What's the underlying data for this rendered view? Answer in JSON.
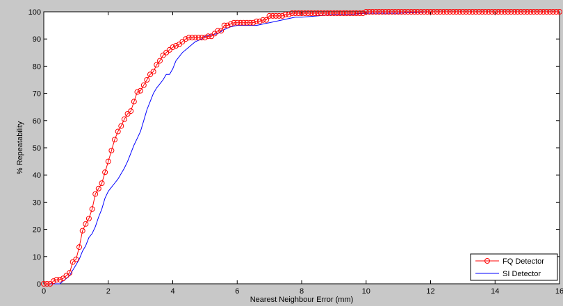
{
  "figure": {
    "background": "#c8c8c8",
    "plot_background": "#ffffff"
  },
  "chart_data": {
    "type": "line",
    "title": "",
    "xlabel": "Nearest Neighbour Error (mm)",
    "ylabel": "% Repeatability",
    "xlim": [
      0,
      16
    ],
    "ylim": [
      0,
      100
    ],
    "xticks": [
      0,
      2,
      4,
      6,
      8,
      10,
      12,
      14,
      16
    ],
    "yticks": [
      0,
      10,
      20,
      30,
      40,
      50,
      60,
      70,
      80,
      90,
      100
    ],
    "grid": false,
    "legend_position": "bottom-right",
    "series": [
      {
        "name": "FQ Detector",
        "color": "#ff0000",
        "marker": "circle",
        "x": [
          0.0,
          0.1,
          0.2,
          0.3,
          0.4,
          0.5,
          0.6,
          0.7,
          0.8,
          0.9,
          1.0,
          1.1,
          1.2,
          1.3,
          1.4,
          1.5,
          1.6,
          1.7,
          1.8,
          1.9,
          2.0,
          2.1,
          2.2,
          2.3,
          2.4,
          2.5,
          2.6,
          2.7,
          2.8,
          2.9,
          3.0,
          3.1,
          3.2,
          3.3,
          3.4,
          3.5,
          3.6,
          3.7,
          3.8,
          3.9,
          4.0,
          4.1,
          4.2,
          4.3,
          4.4,
          4.5,
          4.6,
          4.7,
          4.8,
          4.9,
          5.0,
          5.1,
          5.2,
          5.3,
          5.4,
          5.5,
          5.6,
          5.7,
          5.8,
          5.9,
          6.0,
          6.1,
          6.2,
          6.3,
          6.4,
          6.5,
          6.6,
          6.7,
          6.8,
          6.9,
          7.0,
          7.1,
          7.2,
          7.3,
          7.4,
          7.5,
          7.6,
          7.7,
          7.8,
          7.9,
          8.0,
          8.1,
          8.2,
          8.3,
          8.4,
          8.5,
          8.6,
          8.7,
          8.8,
          8.9,
          9.0,
          9.1,
          9.2,
          9.3,
          9.4,
          9.5,
          9.6,
          9.7,
          9.8,
          9.9,
          10.0,
          10.1,
          10.2,
          10.3,
          10.4,
          10.5,
          10.6,
          10.7,
          10.8,
          10.9,
          11.0,
          11.1,
          11.2,
          11.3,
          11.4,
          11.5,
          11.6,
          11.7,
          11.8,
          11.9,
          12.0,
          12.1,
          12.2,
          12.3,
          12.4,
          12.5,
          12.6,
          12.7,
          12.8,
          12.9,
          13.0,
          13.1,
          13.2,
          13.3,
          13.4,
          13.5,
          13.6,
          13.7,
          13.8,
          13.9,
          14.0,
          14.1,
          14.2,
          14.3,
          14.4,
          14.5,
          14.6,
          14.7,
          14.8,
          14.9,
          15.0,
          15.1,
          15.2,
          15.3,
          15.4,
          15.5,
          15.6,
          15.7,
          15.8,
          15.9,
          16.0
        ],
        "y": [
          0,
          0,
          0,
          1,
          1.5,
          1.5,
          2,
          3,
          4,
          8,
          9,
          13.5,
          19.5,
          22,
          24,
          27.5,
          33,
          35,
          37,
          41,
          45,
          49,
          53,
          56,
          58,
          60.5,
          62.5,
          63.5,
          67,
          70.5,
          71,
          73,
          75,
          77,
          78,
          80.5,
          82,
          84,
          85,
          86,
          87,
          87.5,
          88,
          89,
          90,
          90.5,
          90.5,
          90.5,
          90.5,
          90.5,
          90.5,
          91,
          91,
          92,
          93,
          93,
          95,
          95,
          95.5,
          96,
          96,
          96,
          96,
          96,
          96,
          96,
          96.5,
          96.5,
          97,
          97,
          98.5,
          98.5,
          98.5,
          98.5,
          98.5,
          99,
          99,
          99.5,
          99.5,
          99.5,
          99.5,
          99.5,
          99.5,
          99.5,
          99.5,
          99.5,
          99.5,
          99.5,
          99.5,
          99.5,
          99.5,
          99.5,
          99.5,
          99.5,
          99.5,
          99.5,
          99.5,
          99.5,
          99.5,
          99.5,
          100,
          100,
          100,
          100,
          100,
          100,
          100,
          100,
          100,
          100,
          100,
          100,
          100,
          100,
          100,
          100,
          100,
          100,
          100,
          100,
          100,
          100,
          100,
          100,
          100,
          100,
          100,
          100,
          100,
          100,
          100,
          100,
          100,
          100,
          100,
          100,
          100,
          100,
          100,
          100,
          100,
          100,
          100,
          100,
          100,
          100,
          100,
          100,
          100,
          100,
          100,
          100,
          100,
          100,
          100,
          100,
          100,
          100,
          100,
          100,
          100
        ]
      },
      {
        "name": "SI Detector",
        "color": "#0000ff",
        "marker": "none",
        "x": [
          0.0,
          0.2,
          0.4,
          0.5,
          0.6,
          0.7,
          0.8,
          0.9,
          1.0,
          1.1,
          1.2,
          1.3,
          1.4,
          1.5,
          1.6,
          1.7,
          1.8,
          1.9,
          2.0,
          2.1,
          2.2,
          2.3,
          2.4,
          2.5,
          2.6,
          2.7,
          2.8,
          2.9,
          3.0,
          3.1,
          3.2,
          3.3,
          3.4,
          3.5,
          3.6,
          3.7,
          3.8,
          3.9,
          4.0,
          4.1,
          4.2,
          4.3,
          4.4,
          4.5,
          4.6,
          4.7,
          4.8,
          4.9,
          5.0,
          5.2,
          5.4,
          5.6,
          5.8,
          6.0,
          6.2,
          6.4,
          6.6,
          6.8,
          7.0,
          7.2,
          7.4,
          7.6,
          7.8,
          8.0,
          8.5,
          9.0,
          9.5,
          10.0,
          11.0,
          12.0,
          13.0,
          14.0,
          15.0,
          16.0
        ],
        "y": [
          0,
          0,
          0,
          0,
          1,
          2,
          3,
          5,
          7,
          9,
          12,
          14,
          17,
          18.5,
          21,
          24.5,
          27.5,
          31.5,
          34,
          35.5,
          37,
          38.5,
          40.5,
          42.5,
          45,
          48,
          51,
          53.5,
          56,
          60,
          64,
          67,
          70,
          72,
          73.5,
          75,
          77,
          77,
          79,
          82,
          83.5,
          85,
          86,
          87,
          88,
          89,
          89.5,
          90,
          91,
          91.5,
          92,
          93.5,
          94.5,
          95,
          95,
          95,
          95,
          95.5,
          96,
          96.5,
          97,
          97.5,
          98,
          98,
          98.5,
          99,
          99,
          99.5,
          99.5,
          100,
          100,
          100,
          100,
          100
        ]
      }
    ]
  }
}
